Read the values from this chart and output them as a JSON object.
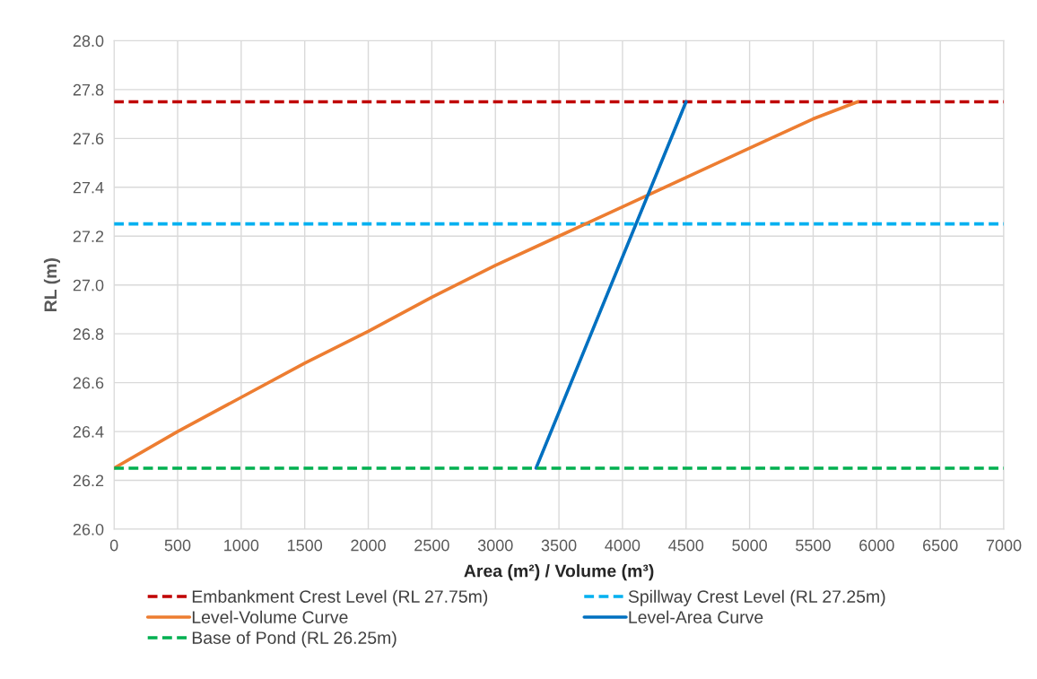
{
  "chart_data": {
    "type": "line",
    "xlabel": "Area (m²) / Volume (m³)",
    "ylabel": "RL (m)",
    "xlim": [
      0,
      7000
    ],
    "xticks": [
      0,
      500,
      1000,
      1500,
      2000,
      2500,
      3000,
      3500,
      4000,
      4500,
      5000,
      5500,
      6000,
      6500,
      7000
    ],
    "ylim": [
      26.0,
      28.0
    ],
    "yticks": [
      {
        "value": 26.0,
        "label": "26.0"
      },
      26.2,
      26.4,
      26.6,
      26.8,
      {
        "value": 27.0,
        "label": "27.0"
      },
      27.2,
      27.4,
      27.6,
      27.8,
      {
        "value": 28.0,
        "label": "28.0"
      }
    ],
    "grid": true,
    "legend": "bottom",
    "marker": "none",
    "series": [
      {
        "name": "Embankment Crest Level (RL 27.75m)",
        "color": "#c00000",
        "line_style": "dashed",
        "x": [
          0,
          7000
        ],
        "values": [
          27.75,
          27.75
        ]
      },
      {
        "name": "Spillway Crest Level (RL 27.25m)",
        "color": "#00b0f0",
        "line_style": "dashed",
        "x": [
          0,
          7000
        ],
        "values": [
          27.25,
          27.25
        ]
      },
      {
        "name": "Level-Volume Curve",
        "color": "#ed7d31",
        "line_style": "solid",
        "x": [
          0,
          500,
          1000,
          1500,
          2000,
          2500,
          3000,
          3500,
          4000,
          4500,
          5000,
          5500,
          5850
        ],
        "values": [
          26.25,
          26.4,
          26.54,
          26.68,
          26.81,
          26.95,
          27.08,
          27.2,
          27.32,
          27.44,
          27.56,
          27.68,
          27.75
        ]
      },
      {
        "name": "Level-Area Curve",
        "color": "#0070c0",
        "line_style": "solid",
        "x": [
          3320,
          4500
        ],
        "values": [
          26.25,
          27.75
        ]
      },
      {
        "name": "Base of Pond (RL 26.25m)",
        "color": "#00b050",
        "line_style": "dashed",
        "x": [
          0,
          7000
        ],
        "values": [
          26.25,
          26.25
        ]
      }
    ]
  }
}
